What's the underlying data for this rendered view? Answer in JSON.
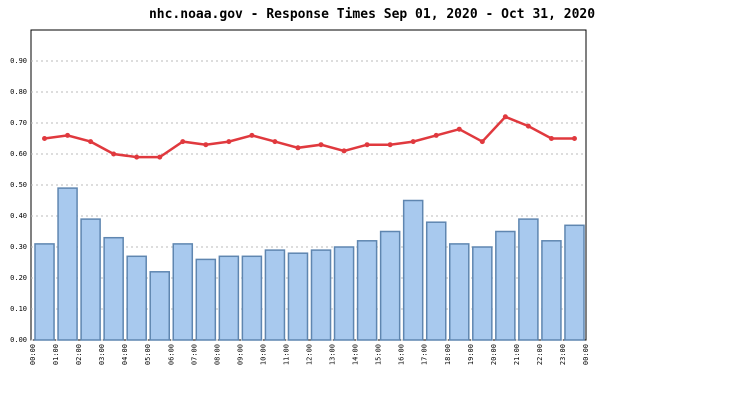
{
  "chart_data": {
    "type": "bar_line",
    "title": "nhc.noaa.gov - Response Times Sep 01, 2020 - Oct 31, 2020",
    "xtick_labels": [
      "00:00",
      "01:00",
      "02:00",
      "03:00",
      "04:00",
      "05:00",
      "06:00",
      "07:00",
      "08:00",
      "09:00",
      "10:00",
      "11:00",
      "12:00",
      "13:00",
      "14:00",
      "15:00",
      "16:00",
      "17:00",
      "18:00",
      "19:00",
      "20:00",
      "21:00",
      "22:00",
      "23:00",
      "00:00"
    ],
    "series": [
      {
        "type": "bar",
        "color": "#a8c9ee",
        "edge": "#5f86b0",
        "values": [
          0.31,
          0.49,
          0.39,
          0.33,
          0.27,
          0.22,
          0.31,
          0.26,
          0.27,
          0.27,
          0.29,
          0.28,
          0.29,
          0.3,
          0.32,
          0.35,
          0.45,
          0.38,
          0.31,
          0.3,
          0.35,
          0.39,
          0.32,
          0.37
        ]
      },
      {
        "type": "line",
        "color": "#e0393e",
        "values": [
          0.65,
          0.66,
          0.64,
          0.6,
          0.59,
          0.59,
          0.64,
          0.63,
          0.64,
          0.66,
          0.64,
          0.62,
          0.63,
          0.61,
          0.63,
          0.63,
          0.64,
          0.66,
          0.68,
          0.64,
          0.72,
          0.69,
          0.65,
          0.65
        ]
      }
    ],
    "ylim": [
      0,
      1
    ],
    "yticks": [
      {
        "value": 0,
        "label": "0.00"
      },
      {
        "value": 0.1,
        "label": "0.10"
      },
      {
        "value": 0.2,
        "label": "0.20"
      },
      {
        "value": 0.3,
        "label": "0.30"
      },
      {
        "value": 0.4,
        "label": "0.40"
      },
      {
        "value": 0.5,
        "label": "0.50"
      },
      {
        "value": 0.6,
        "label": "0.60"
      },
      {
        "value": 0.7,
        "label": "0.70"
      },
      {
        "value": 0.8,
        "label": "0.80"
      },
      {
        "value": 0.9,
        "label": "0.90"
      }
    ],
    "grid": true
  }
}
